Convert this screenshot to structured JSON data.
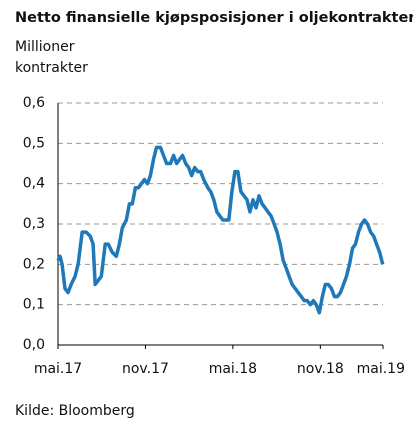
{
  "chart_data": {
    "type": "line",
    "title": "Netto finansielle kjøpsposisjoner i oljekontrakter",
    "y_label": [
      "Millioner",
      "kontrakter"
    ],
    "source": "Kilde: Bloomberg",
    "xlim": [
      0,
      22.3
    ],
    "xticks": [
      {
        "value": 0,
        "label": "mai.17"
      },
      {
        "value": 6,
        "label": "nov.17"
      },
      {
        "value": 12,
        "label": "mai.18"
      },
      {
        "value": 18,
        "label": "nov.18"
      },
      {
        "value": 24,
        "label": "mai.19"
      }
    ],
    "ylim": [
      0,
      0.6
    ],
    "yticks": [
      {
        "value": 0,
        "label": "0,0"
      },
      {
        "value": 0.1,
        "label": "0,1"
      },
      {
        "value": 0.2,
        "label": "0,2"
      },
      {
        "value": 0.3,
        "label": "0,3"
      },
      {
        "value": 0.4,
        "label": "0,4"
      },
      {
        "value": 0.5,
        "label": "0,5"
      },
      {
        "value": 0.6,
        "label": "0,6"
      }
    ],
    "grid": true,
    "series": [
      {
        "color": "#1f78b8",
        "x": [
          0,
          0.14,
          0.28,
          0.48,
          0.69,
          0.9,
          1.17,
          1.38,
          1.66,
          1.93,
          2.21,
          2.41,
          2.55,
          2.76,
          2.97,
          3.24,
          3.45,
          3.72,
          4,
          4.21,
          4.41,
          4.69,
          4.9,
          5.1,
          5.31,
          5.52,
          5.72,
          5.93,
          6.14,
          6.34,
          6.55,
          6.76,
          7.03,
          7.24,
          7.45,
          7.72,
          7.93,
          8.14,
          8.34,
          8.55,
          8.76,
          8.97,
          9.17,
          9.38,
          9.59,
          9.79,
          10,
          10.28,
          10.48,
          10.69,
          10.9,
          11.1,
          11.31,
          11.52,
          11.72,
          11.93,
          12.14,
          12.34,
          12.55,
          12.76,
          12.97,
          13.17,
          13.38,
          13.59,
          13.79,
          14,
          14.21,
          14.41,
          14.62,
          14.83,
          15.03,
          15.24,
          15.45,
          15.66,
          15.86,
          16.07,
          16.28,
          16.48,
          16.69,
          16.9,
          17.1,
          17.31,
          17.52,
          17.72,
          17.93,
          18.14,
          18.34,
          18.55,
          18.76,
          18.97,
          19.17,
          19.38,
          19.59,
          19.79,
          20,
          20.21,
          20.41,
          20.62,
          20.83,
          21.03,
          21.24,
          21.45,
          21.66,
          21.86,
          22.07,
          22.28
        ],
        "values": [
          0.21,
          0.22,
          0.2,
          0.14,
          0.13,
          0.15,
          0.17,
          0.2,
          0.28,
          0.28,
          0.27,
          0.25,
          0.15,
          0.16,
          0.17,
          0.25,
          0.25,
          0.23,
          0.22,
          0.25,
          0.29,
          0.31,
          0.35,
          0.35,
          0.39,
          0.39,
          0.4,
          0.41,
          0.4,
          0.42,
          0.46,
          0.49,
          0.49,
          0.47,
          0.45,
          0.45,
          0.47,
          0.45,
          0.46,
          0.47,
          0.45,
          0.44,
          0.42,
          0.44,
          0.43,
          0.43,
          0.41,
          0.39,
          0.38,
          0.36,
          0.33,
          0.32,
          0.31,
          0.31,
          0.31,
          0.38,
          0.43,
          0.43,
          0.38,
          0.37,
          0.36,
          0.33,
          0.36,
          0.34,
          0.37,
          0.35,
          0.34,
          0.33,
          0.32,
          0.3,
          0.28,
          0.25,
          0.21,
          0.19,
          0.17,
          0.15,
          0.14,
          0.13,
          0.12,
          0.11,
          0.11,
          0.1,
          0.11,
          0.1,
          0.08,
          0.12,
          0.15,
          0.15,
          0.14,
          0.12,
          0.12,
          0.13,
          0.15,
          0.17,
          0.2,
          0.24,
          0.25,
          0.28,
          0.3,
          0.31,
          0.3,
          0.28,
          0.27,
          0.25,
          0.23,
          0.2
        ]
      }
    ]
  }
}
